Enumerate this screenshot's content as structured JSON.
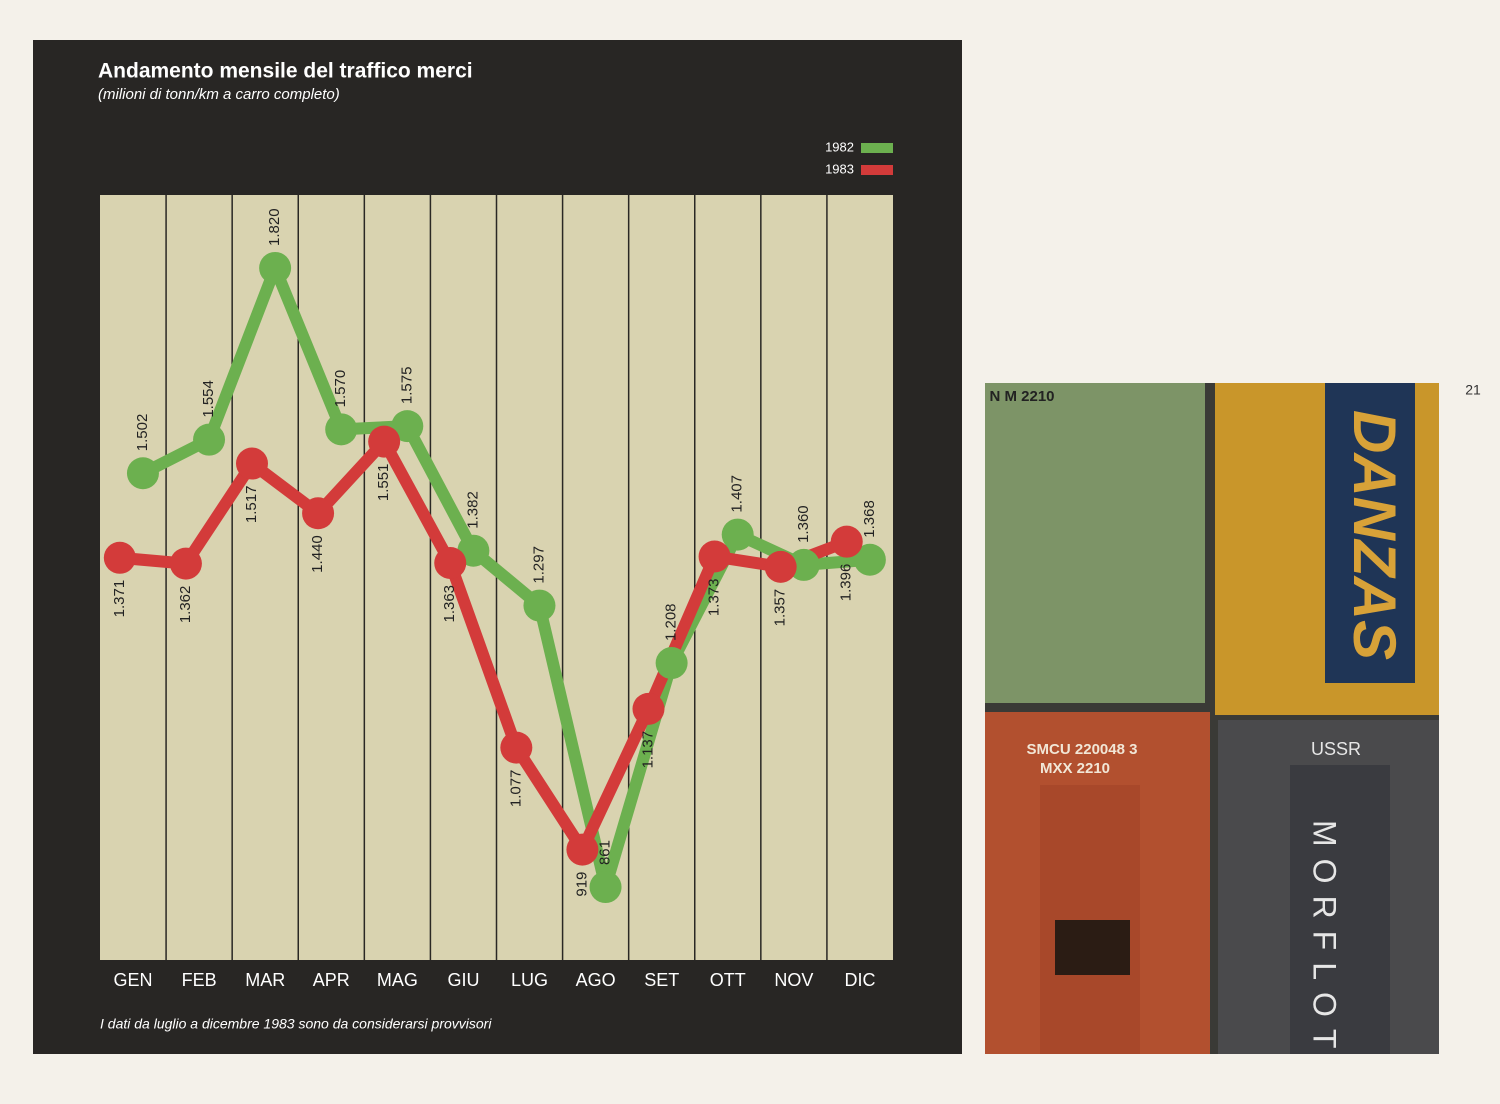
{
  "chart_data": {
    "type": "line",
    "title": "Andamento mensile del traffico merci",
    "subtitle": "(milioni di tonn/km a carro completo)",
    "categories": [
      "GEN",
      "FEB",
      "MAR",
      "APR",
      "MAG",
      "GIU",
      "LUG",
      "AGO",
      "SET",
      "OTT",
      "NOV",
      "DIC"
    ],
    "series": [
      {
        "name": "1982",
        "color": "#6cb04f",
        "values": [
          1502,
          1554,
          1820,
          1570,
          1575,
          1382,
          1297,
          861,
          1208,
          1407,
          1360,
          1368
        ],
        "value_labels": [
          "1.502",
          "1.554",
          "1.820",
          "1.570",
          "1.575",
          "1.382",
          "1.297",
          "861",
          "1.208",
          "1.407",
          "1.360",
          "1.368"
        ]
      },
      {
        "name": "1983",
        "color": "#d33b3a",
        "values": [
          1371,
          1362,
          1517,
          1440,
          1551,
          1363,
          1077,
          919,
          1137,
          1373,
          1357,
          1396
        ],
        "value_labels": [
          "1.371",
          "1.362",
          "1.517",
          "1.440",
          "1.551",
          "1.363",
          "1.077",
          "919",
          "1.137",
          "1.373",
          "1.357",
          "1.396"
        ]
      }
    ],
    "ylim": [
      748,
      1933
    ],
    "legend": "top-right",
    "note": "I dati da luglio a dicembre 1983 sono da considerarsi provvisori"
  },
  "page_number": "21",
  "photo": {
    "texts": [
      "N M 2210",
      "DANZAS",
      "SMCU 220048 3",
      "MXX 2210",
      "USSR",
      "MORFLOT"
    ]
  }
}
